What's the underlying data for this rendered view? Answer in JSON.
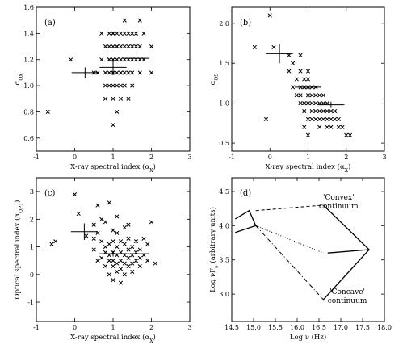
{
  "chart_data": [
    {
      "id": "a",
      "type": "scatter",
      "panel_label": "(a)",
      "xlabel": "X-ray spectral index (α",
      "xlabel_sub": "X",
      "ylabel": "α",
      "ylabel_sub": "OX",
      "xlim": [
        -1,
        3
      ],
      "ylim": [
        0.5,
        1.6
      ],
      "xticks": [
        -1,
        0,
        1,
        2,
        3
      ],
      "yticks": [
        0.6,
        0.8,
        1.0,
        1.2,
        1.4,
        1.6
      ],
      "ytick_labels": [
        "0.6",
        "0.8",
        "1.0",
        "1.2",
        "1.4",
        "1.6"
      ],
      "points": [
        [
          -0.7,
          0.8
        ],
        [
          -0.1,
          1.2
        ],
        [
          0.5,
          1.1
        ],
        [
          0.6,
          1.1
        ],
        [
          0.7,
          1.2
        ],
        [
          0.8,
          1.3
        ],
        [
          0.8,
          1.0
        ],
        [
          0.8,
          1.1
        ],
        [
          0.8,
          0.9
        ],
        [
          0.9,
          1.2
        ],
        [
          0.9,
          1.1
        ],
        [
          0.9,
          1.2
        ],
        [
          0.9,
          1.3
        ],
        [
          0.9,
          1.0
        ],
        [
          1.0,
          1.4
        ],
        [
          1.0,
          1.2
        ],
        [
          1.0,
          1.3
        ],
        [
          1.0,
          1.1
        ],
        [
          1.0,
          1.4
        ],
        [
          1.0,
          1.0
        ],
        [
          1.0,
          1.2
        ],
        [
          1.0,
          0.7
        ],
        [
          1.0,
          1.1
        ],
        [
          1.0,
          1.4
        ],
        [
          1.1,
          1.3
        ],
        [
          1.1,
          1.2
        ],
        [
          1.1,
          1.1
        ],
        [
          1.1,
          1.3
        ],
        [
          1.1,
          1.0
        ],
        [
          1.1,
          1.2
        ],
        [
          1.1,
          0.8
        ],
        [
          1.2,
          1.4
        ],
        [
          1.2,
          1.2
        ],
        [
          1.2,
          1.3
        ],
        [
          1.2,
          1.1
        ],
        [
          1.2,
          1.0
        ],
        [
          1.2,
          1.1
        ],
        [
          1.2,
          1.2
        ],
        [
          1.3,
          1.4
        ],
        [
          1.3,
          1.2
        ],
        [
          1.3,
          1.1
        ],
        [
          1.3,
          1.3
        ],
        [
          1.3,
          1.0
        ],
        [
          1.4,
          1.1
        ],
        [
          1.4,
          1.3
        ],
        [
          1.4,
          1.2
        ],
        [
          1.4,
          1.4
        ],
        [
          1.4,
          0.9
        ],
        [
          1.5,
          1.2
        ],
        [
          1.5,
          1.3
        ],
        [
          1.5,
          1.0
        ],
        [
          1.5,
          1.1
        ],
        [
          1.6,
          1.2
        ],
        [
          1.6,
          1.3
        ],
        [
          1.6,
          1.4
        ],
        [
          1.7,
          1.2
        ],
        [
          1.7,
          1.1
        ],
        [
          1.7,
          1.3
        ],
        [
          1.7,
          1.5
        ],
        [
          1.8,
          1.4
        ],
        [
          1.8,
          1.2
        ],
        [
          2.0,
          1.3
        ],
        [
          2.0,
          1.1
        ],
        [
          0.7,
          1.4
        ],
        [
          0.9,
          1.4
        ],
        [
          1.1,
          1.4
        ],
        [
          1.0,
          0.9
        ],
        [
          1.2,
          0.9
        ],
        [
          1.3,
          1.5
        ],
        [
          1.5,
          1.4
        ]
      ],
      "bins": [
        {
          "x": 0.27,
          "y": 1.1,
          "xerr": 0.35,
          "yerr": 0.04
        },
        {
          "x": 1.0,
          "y": 1.14,
          "xerr": 0.35,
          "yerr": 0.06
        },
        {
          "x": 1.6,
          "y": 1.21,
          "xerr": 0.35,
          "yerr": 0.03
        }
      ]
    },
    {
      "id": "b",
      "type": "scatter",
      "panel_label": "(b)",
      "xlabel": "X-ray spectral index (α",
      "xlabel_sub": "X",
      "ylabel": "α",
      "ylabel_sub": "OS",
      "xlim": [
        -1,
        3
      ],
      "ylim": [
        0.4,
        2.2
      ],
      "xticks": [
        -1,
        0,
        1,
        2,
        3
      ],
      "yticks": [
        0.5,
        1.0,
        1.5,
        2.0
      ],
      "ytick_labels": [
        "0.5",
        "1.0",
        "1.5",
        "2.0"
      ],
      "points": [
        [
          -0.4,
          1.7
        ],
        [
          -0.1,
          0.8
        ],
        [
          0.0,
          2.1
        ],
        [
          0.1,
          1.7
        ],
        [
          0.5,
          1.6
        ],
        [
          0.5,
          1.4
        ],
        [
          0.6,
          1.5
        ],
        [
          0.7,
          1.3
        ],
        [
          0.7,
          1.1
        ],
        [
          0.8,
          1.4
        ],
        [
          0.8,
          1.2
        ],
        [
          0.8,
          1.0
        ],
        [
          0.8,
          1.1
        ],
        [
          0.9,
          1.2
        ],
        [
          0.9,
          1.3
        ],
        [
          0.9,
          1.0
        ],
        [
          0.9,
          0.9
        ],
        [
          0.9,
          0.7
        ],
        [
          1.0,
          1.2
        ],
        [
          1.0,
          1.3
        ],
        [
          1.0,
          1.1
        ],
        [
          1.0,
          1.0
        ],
        [
          1.0,
          0.8
        ],
        [
          1.0,
          0.6
        ],
        [
          1.1,
          1.2
        ],
        [
          1.1,
          1.1
        ],
        [
          1.1,
          1.0
        ],
        [
          1.1,
          0.9
        ],
        [
          1.1,
          0.8
        ],
        [
          1.2,
          1.1
        ],
        [
          1.2,
          1.0
        ],
        [
          1.2,
          0.9
        ],
        [
          1.2,
          0.8
        ],
        [
          1.2,
          1.2
        ],
        [
          1.3,
          1.1
        ],
        [
          1.3,
          1.0
        ],
        [
          1.3,
          0.9
        ],
        [
          1.3,
          0.8
        ],
        [
          1.3,
          0.7
        ],
        [
          1.4,
          1.0
        ],
        [
          1.4,
          0.9
        ],
        [
          1.4,
          0.8
        ],
        [
          1.4,
          1.1
        ],
        [
          1.5,
          0.9
        ],
        [
          1.5,
          1.0
        ],
        [
          1.5,
          0.8
        ],
        [
          1.5,
          0.7
        ],
        [
          1.6,
          0.9
        ],
        [
          1.6,
          0.8
        ],
        [
          1.6,
          0.7
        ],
        [
          1.7,
          0.9
        ],
        [
          1.7,
          0.8
        ],
        [
          1.8,
          0.8
        ],
        [
          1.8,
          0.7
        ],
        [
          1.9,
          0.7
        ],
        [
          2.0,
          0.6
        ],
        [
          2.1,
          0.6
        ],
        [
          0.8,
          1.6
        ],
        [
          0.6,
          1.2
        ],
        [
          1.0,
          1.4
        ]
      ],
      "bins": [
        {
          "x": 0.25,
          "y": 1.62,
          "xerr": 0.35,
          "yerr": 0.12
        },
        {
          "x": 1.0,
          "y": 1.2,
          "xerr": 0.35,
          "yerr": 0.05
        },
        {
          "x": 1.6,
          "y": 0.98,
          "xerr": 0.35,
          "yerr": 0.04
        }
      ]
    },
    {
      "id": "c",
      "type": "scatter",
      "panel_label": "(c)",
      "xlabel": "X-ray spectral index (α",
      "xlabel_sub": "X",
      "ylabel": "Optical spectral index (α",
      "ylabel_sub": "OPT",
      "ylabel_tail": ")",
      "xlim": [
        -1,
        3
      ],
      "ylim": [
        -1.7,
        3.5
      ],
      "xticks": [
        -1,
        0,
        1,
        2,
        3
      ],
      "yticks": [
        -1,
        0,
        1,
        2,
        3
      ],
      "ytick_labels": [
        "-1",
        "0",
        "1",
        "2",
        "3"
      ],
      "points": [
        [
          -0.6,
          1.1
        ],
        [
          -0.5,
          1.2
        ],
        [
          0.0,
          2.9
        ],
        [
          0.1,
          2.2
        ],
        [
          0.3,
          1.4
        ],
        [
          0.5,
          1.8
        ],
        [
          0.5,
          1.3
        ],
        [
          0.5,
          0.9
        ],
        [
          0.6,
          0.5
        ],
        [
          0.6,
          1.5
        ],
        [
          0.6,
          2.5
        ],
        [
          0.7,
          1.2
        ],
        [
          0.7,
          0.6
        ],
        [
          0.8,
          0.8
        ],
        [
          0.8,
          0.3
        ],
        [
          0.8,
          1.0
        ],
        [
          0.8,
          1.9
        ],
        [
          0.9,
          0.7
        ],
        [
          0.9,
          0.5
        ],
        [
          0.9,
          1.1
        ],
        [
          0.9,
          0.0
        ],
        [
          0.9,
          2.6
        ],
        [
          1.0,
          0.8
        ],
        [
          1.0,
          0.5
        ],
        [
          1.0,
          1.2
        ],
        [
          1.0,
          0.3
        ],
        [
          1.0,
          -0.2
        ],
        [
          1.0,
          1.6
        ],
        [
          1.1,
          0.7
        ],
        [
          1.1,
          0.4
        ],
        [
          1.1,
          1.0
        ],
        [
          1.1,
          0.1
        ],
        [
          1.1,
          1.5
        ],
        [
          1.2,
          0.8
        ],
        [
          1.2,
          0.5
        ],
        [
          1.2,
          1.2
        ],
        [
          1.2,
          0.2
        ],
        [
          1.2,
          -0.3
        ],
        [
          1.3,
          0.7
        ],
        [
          1.3,
          0.4
        ],
        [
          1.3,
          1.1
        ],
        [
          1.3,
          0.0
        ],
        [
          1.3,
          1.7
        ],
        [
          1.4,
          0.6
        ],
        [
          1.4,
          0.9
        ],
        [
          1.4,
          0.3
        ],
        [
          1.4,
          1.3
        ],
        [
          1.5,
          0.7
        ],
        [
          1.5,
          0.4
        ],
        [
          1.5,
          1.0
        ],
        [
          1.5,
          0.1
        ],
        [
          1.6,
          0.8
        ],
        [
          1.6,
          0.5
        ],
        [
          1.6,
          1.2
        ],
        [
          1.7,
          0.6
        ],
        [
          1.7,
          0.3
        ],
        [
          1.7,
          0.9
        ],
        [
          1.8,
          0.7
        ],
        [
          1.8,
          1.3
        ],
        [
          1.9,
          0.5
        ],
        [
          1.9,
          1.1
        ],
        [
          2.0,
          1.9
        ],
        [
          2.1,
          0.4
        ],
        [
          0.7,
          2.0
        ],
        [
          1.1,
          2.1
        ],
        [
          1.4,
          1.8
        ]
      ],
      "bins": [
        {
          "x": 0.25,
          "y": 1.55,
          "xerr": 0.35,
          "yerr": 0.3
        },
        {
          "x": 1.0,
          "y": 0.75,
          "xerr": 0.35,
          "yerr": 0.1
        },
        {
          "x": 1.6,
          "y": 0.75,
          "xerr": 0.35,
          "yerr": 0.1
        }
      ]
    },
    {
      "id": "d",
      "type": "line",
      "panel_label": "(d)",
      "xlabel": "Log ν (Hz)",
      "ylabel": "Log νF",
      "ylabel_sub": "ν",
      "ylabel_tail": " (arbitrary units)",
      "xlim": [
        14.5,
        18.0
      ],
      "ylim": [
        2.6,
        4.7
      ],
      "xticks": [
        14.5,
        15.0,
        15.5,
        16.0,
        16.5,
        17.0,
        17.5,
        18.0
      ],
      "xtick_labels": [
        "14.5",
        "15.0",
        "15.5",
        "16.0",
        "16.5",
        "17.0",
        "17.5",
        "18.0"
      ],
      "yticks": [
        3.0,
        3.5,
        4.0,
        4.5
      ],
      "ytick_labels": [
        "3.0",
        "3.5",
        "4.0",
        "4.5"
      ],
      "series": [
        {
          "style": "solid",
          "points": [
            [
              14.58,
              3.9
            ],
            [
              15.05,
              4.0
            ],
            [
              15.1,
              3.98
            ]
          ]
        },
        {
          "style": "solid",
          "points": [
            [
              14.58,
              4.1
            ],
            [
              14.9,
              4.22
            ],
            [
              15.05,
              4.0
            ]
          ]
        },
        {
          "style": "dashed",
          "points": [
            [
              15.05,
              4.22
            ],
            [
              16.6,
              4.3
            ]
          ]
        },
        {
          "style": "dotted",
          "points": [
            [
              15.05,
              4.0
            ],
            [
              16.6,
              3.6
            ]
          ]
        },
        {
          "style": "dashdot",
          "points": [
            [
              15.05,
              4.0
            ],
            [
              16.6,
              2.92
            ]
          ]
        },
        {
          "style": "solid",
          "points": [
            [
              16.6,
              4.3
            ],
            [
              17.65,
              3.65
            ],
            [
              16.6,
              2.92
            ]
          ]
        },
        {
          "style": "solid",
          "points": [
            [
              16.7,
              3.6
            ],
            [
              17.65,
              3.65
            ]
          ]
        }
      ],
      "annotations": [
        {
          "lines": [
            "'Convex'",
            "continuum"
          ],
          "x": 16.95,
          "y": 4.38
        },
        {
          "lines": [
            "'Concave'",
            "continuum"
          ],
          "x": 17.15,
          "y": 3.0
        }
      ]
    }
  ]
}
